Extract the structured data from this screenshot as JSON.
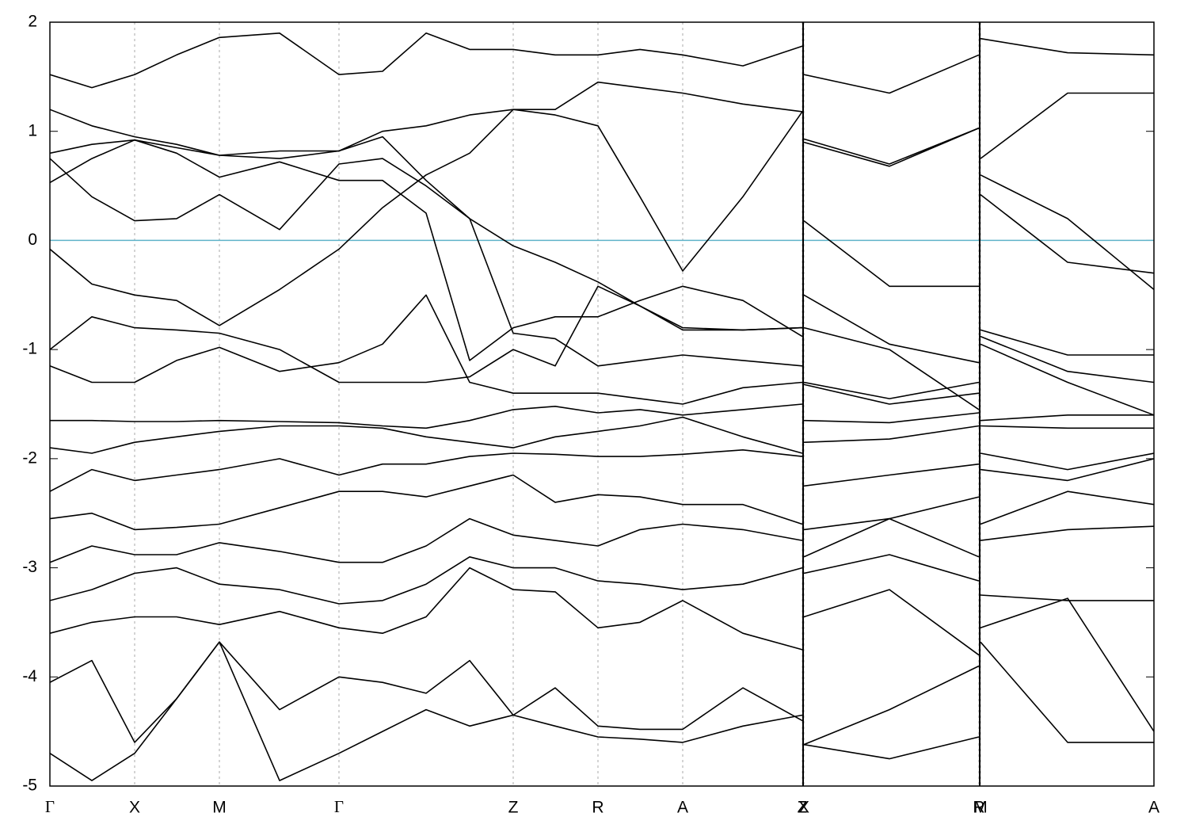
{
  "chart_data": {
    "type": "line",
    "x": [
      0,
      0.53,
      1.07,
      1.6,
      2.14,
      2.9,
      3.65,
      4.2,
      4.75,
      5.3,
      5.85,
      6.38,
      6.92,
      7.45,
      7.99,
      8.75,
      9.5,
      9.51,
      9.52,
      10.6,
      11.73,
      11.74,
      11.75,
      12.85,
      13.94
    ],
    "xlim": [
      0,
      13.94
    ],
    "xticks": [
      {
        "value": 0,
        "label": "Γ"
      },
      {
        "value": 1.07,
        "label": "X"
      },
      {
        "value": 2.14,
        "label": "M"
      },
      {
        "value": 3.65,
        "label": "Γ"
      },
      {
        "value": 5.85,
        "label": "Z"
      },
      {
        "value": 6.92,
        "label": "R"
      },
      {
        "value": 7.99,
        "label": "A"
      },
      {
        "value": 9.5,
        "label": "Z"
      },
      {
        "value": 9.52,
        "label": "X"
      },
      {
        "value": 11.73,
        "label": "R"
      },
      {
        "value": 11.75,
        "label": "M"
      },
      {
        "value": 13.94,
        "label": "A"
      }
    ],
    "ylim": [
      -5,
      2
    ],
    "yticks": [
      -5,
      -4,
      -3,
      -2,
      -1,
      0,
      1,
      2
    ],
    "grid": true,
    "hline": {
      "value": 0,
      "color": "#5fb3c9"
    },
    "series": [
      {
        "color": "#000000",
        "values": [
          -0.08,
          -0.4,
          -0.5,
          -0.55,
          -0.78,
          -0.45,
          -0.08,
          0.3,
          0.6,
          0.8,
          1.2,
          1.2,
          1.45,
          1.4,
          1.35,
          1.25,
          1.18,
          null,
          0.93,
          0.7,
          1.03,
          null,
          0.75,
          1.35,
          1.35
        ]
      },
      {
        "color": "#000000",
        "values": [
          0.75,
          0.4,
          0.18,
          0.2,
          0.42,
          0.1,
          0.7,
          0.75,
          0.5,
          0.2,
          -0.05,
          -0.2,
          -0.38,
          -0.6,
          -0.8,
          -0.82,
          -0.8,
          null,
          0.18,
          -0.42,
          -0.42,
          null,
          0.6,
          0.2,
          -0.45
        ]
      },
      {
        "color": "#000000",
        "values": [
          0.8,
          0.88,
          0.92,
          0.85,
          0.78,
          0.75,
          0.82,
          1.0,
          1.05,
          1.15,
          1.2,
          1.15,
          1.05,
          0.4,
          -0.28,
          0.4,
          1.18,
          null,
          0.9,
          0.68,
          1.03,
          null,
          0.42,
          -0.2,
          -0.3
        ]
      },
      {
        "color": "#000000",
        "values": [
          0.53,
          0.75,
          0.92,
          0.8,
          0.58,
          0.72,
          0.55,
          0.55,
          0.25,
          -1.1,
          -0.8,
          -0.7,
          -0.7,
          -0.55,
          -0.42,
          -0.55,
          -0.88,
          null,
          -0.5,
          -0.95,
          -1.12,
          null,
          -0.82,
          -1.05,
          -1.05
        ]
      },
      {
        "color": "#000000",
        "values": [
          1.52,
          1.4,
          1.52,
          1.7,
          1.86,
          1.9,
          1.52,
          1.55,
          1.9,
          1.75,
          1.75,
          1.7,
          1.7,
          1.75,
          1.7,
          1.6,
          1.78,
          null,
          1.52,
          1.35,
          1.7,
          null,
          1.85,
          1.72,
          1.7
        ]
      },
      {
        "color": "#000000",
        "values": [
          1.2,
          1.05,
          0.95,
          0.88,
          0.78,
          0.82,
          0.82,
          0.95,
          0.55,
          0.2,
          -0.85,
          -0.9,
          -1.15,
          -1.1,
          -1.05,
          -1.1,
          -1.15,
          null,
          -0.8,
          -1.0,
          -1.55,
          null,
          -0.88,
          -1.2,
          -1.3
        ]
      },
      {
        "color": "#000000",
        "values": [
          -1.0,
          -0.7,
          -0.8,
          -0.82,
          -0.85,
          -1.0,
          -1.3,
          -1.3,
          -1.3,
          -1.25,
          -1.0,
          -1.15,
          -0.42,
          -0.6,
          -0.82,
          -0.82,
          -0.8,
          null,
          -1.3,
          -1.45,
          -1.3,
          null,
          -0.95,
          -1.3,
          -1.6
        ]
      },
      {
        "color": "#000000",
        "values": [
          -1.15,
          -1.3,
          -1.3,
          -1.1,
          -0.98,
          -1.2,
          -1.12,
          -0.95,
          -0.5,
          -1.3,
          -1.4,
          -1.4,
          -1.4,
          -1.45,
          -1.5,
          -1.35,
          -1.3,
          null,
          -1.32,
          -1.5,
          -1.4,
          null,
          -1.65,
          -1.6,
          -1.6
        ]
      },
      {
        "color": "#000000",
        "values": [
          -1.65,
          -1.65,
          -1.66,
          -1.66,
          -1.65,
          -1.66,
          -1.67,
          -1.7,
          -1.72,
          -1.65,
          -1.55,
          -1.52,
          -1.58,
          -1.55,
          -1.6,
          -1.55,
          -1.5,
          null,
          -1.65,
          -1.67,
          -1.58,
          null,
          -1.7,
          -1.72,
          -1.72
        ]
      },
      {
        "color": "#000000",
        "values": [
          -1.9,
          -1.95,
          -1.85,
          -1.8,
          -1.75,
          -1.7,
          -1.7,
          -1.72,
          -1.8,
          -1.85,
          -1.9,
          -1.8,
          -1.75,
          -1.7,
          -1.62,
          -1.8,
          -1.95,
          null,
          -1.85,
          -1.82,
          -1.7,
          null,
          -1.95,
          -2.1,
          -1.95
        ]
      },
      {
        "color": "#000000",
        "values": [
          -2.3,
          -2.1,
          -2.2,
          -2.15,
          -2.1,
          -2.0,
          -2.15,
          -2.05,
          -2.05,
          -1.98,
          -1.95,
          -1.96,
          -1.98,
          -1.98,
          -1.96,
          -1.92,
          -1.98,
          null,
          -2.25,
          -2.15,
          -2.05,
          null,
          -2.1,
          -2.2,
          -2.0
        ]
      },
      {
        "color": "#000000",
        "values": [
          -2.55,
          -2.5,
          -2.65,
          -2.63,
          -2.6,
          -2.45,
          -2.3,
          -2.3,
          -2.35,
          -2.25,
          -2.15,
          -2.4,
          -2.33,
          -2.35,
          -2.42,
          -2.42,
          -2.6,
          null,
          -2.65,
          -2.55,
          -2.35,
          null,
          -2.6,
          -2.3,
          -2.42
        ]
      },
      {
        "color": "#000000",
        "values": [
          -2.95,
          -2.8,
          -2.88,
          -2.88,
          -2.77,
          -2.85,
          -2.95,
          -2.95,
          -2.8,
          -2.55,
          -2.7,
          -2.75,
          -2.8,
          -2.65,
          -2.6,
          -2.65,
          -2.75,
          null,
          -2.9,
          -2.55,
          -2.9,
          null,
          -2.75,
          -2.65,
          -2.62
        ]
      },
      {
        "color": "#000000",
        "values": [
          -3.3,
          -3.2,
          -3.05,
          -3.0,
          -3.15,
          -3.2,
          -3.33,
          -3.3,
          -3.15,
          -2.9,
          -3.0,
          -3.0,
          -3.12,
          -3.15,
          -3.2,
          -3.15,
          -3.0,
          null,
          -3.05,
          -2.88,
          -3.12,
          null,
          -3.25,
          -3.3,
          -3.3
        ]
      },
      {
        "color": "#000000",
        "values": [
          -3.6,
          -3.5,
          -3.45,
          -3.45,
          -3.52,
          -3.4,
          -3.55,
          -3.6,
          -3.45,
          -3.0,
          -3.2,
          -3.22,
          -3.55,
          -3.5,
          -3.3,
          -3.6,
          -3.75,
          null,
          -3.45,
          -3.2,
          -3.8,
          null,
          -3.55,
          -3.28,
          -4.5
        ]
      },
      {
        "color": "#000000",
        "values": [
          -4.05,
          -3.85,
          -4.6,
          -4.2,
          -3.68,
          -4.3,
          -4.0,
          -4.05,
          -4.15,
          -3.85,
          -4.35,
          -4.1,
          -4.45,
          -4.48,
          -4.48,
          -4.1,
          -4.4,
          null,
          -4.62,
          -4.3,
          -3.9,
          null,
          null,
          null,
          null
        ]
      },
      {
        "color": "#000000",
        "values": [
          -4.7,
          -4.95,
          -4.7,
          -4.2,
          -3.68,
          -4.95,
          -4.7,
          -4.5,
          -4.3,
          -4.45,
          -4.35,
          -4.45,
          -4.55,
          -4.57,
          -4.6,
          -4.45,
          -4.35,
          null,
          -4.62,
          -4.75,
          -4.55,
          null,
          -3.68,
          -4.6,
          -4.6
        ]
      }
    ]
  }
}
